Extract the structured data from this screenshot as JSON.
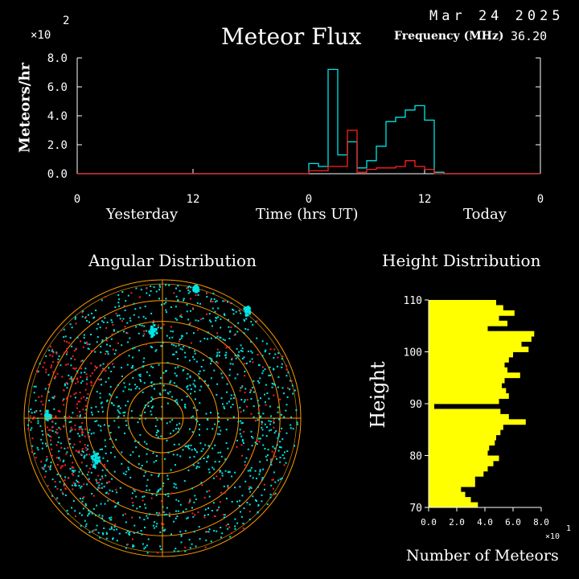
{
  "header": {
    "date": "Mar 24 2025",
    "title": "Meteor Flux",
    "frequency_label": "Frequency (MHz)",
    "frequency_value": "36.20",
    "exponent_label": "×10",
    "exponent_power": "2"
  },
  "flux_chart": {
    "ylabel": "Meteors/hr",
    "xlabel": "Time (hrs UT)",
    "yesterday_label": "Yesterday",
    "today_label": "Today",
    "colors": {
      "axis": "#ffffff",
      "cyan": "#00e5e5",
      "red": "#ff2020"
    }
  },
  "angular": {
    "title": "Angular Distribution",
    "colors": {
      "rings": "#ff9900",
      "cyan": "#00e5e5",
      "red": "#ff2020"
    }
  },
  "height": {
    "title": "Height Distribution",
    "ylabel": "Height",
    "xlabel": "Number of Meteors",
    "exponent_label": "×10",
    "exponent_power": "1",
    "bar_color": "#ffff00"
  },
  "chart_data": [
    {
      "type": "line",
      "title": "Meteor Flux",
      "ylabel": "Meteors/hr",
      "xlabel": "Time (hrs UT)",
      "ylim": [
        0,
        8.0
      ],
      "yticks": [
        "0.0",
        "2.0",
        "4.0",
        "6.0",
        "8.0"
      ],
      "xticks": [
        "0",
        "12",
        "0",
        "12",
        "0"
      ],
      "x_hours": [
        0,
        1,
        2,
        3,
        4,
        5,
        6,
        7,
        8,
        9,
        10,
        11,
        12,
        13,
        14,
        15,
        16,
        17,
        18,
        19,
        20,
        21,
        22,
        23
      ],
      "series": [
        {
          "color": "cyan",
          "values": [
            0.7,
            0.5,
            7.2,
            1.3,
            2.2,
            0.4,
            0.9,
            1.9,
            3.6,
            3.9,
            4.4,
            4.7,
            3.7,
            0.1,
            0,
            0,
            0,
            0,
            0,
            0,
            0,
            0,
            0,
            0
          ]
        },
        {
          "color": "red",
          "values": [
            0.2,
            0.2,
            0.5,
            0.5,
            3.0,
            0.1,
            0.3,
            0.4,
            0.4,
            0.5,
            0.9,
            0.5,
            0.3,
            0,
            0,
            0,
            0,
            0,
            0,
            0,
            0,
            0,
            0,
            0
          ]
        }
      ]
    },
    {
      "type": "scatter",
      "title": "Angular Distribution"
    },
    {
      "type": "bar",
      "title": "Height Distribution",
      "ylabel": "Height",
      "xlabel": "Number of Meteors",
      "xlim": [
        0,
        8.0
      ],
      "xticks": [
        "0.0",
        "2.0",
        "4.0",
        "6.0",
        "8.0"
      ],
      "ylim": [
        70,
        110
      ],
      "yticks": [
        "70",
        "80",
        "90",
        "100",
        "110"
      ],
      "heights": [
        110,
        109,
        108,
        107,
        106,
        105,
        104,
        103,
        102,
        101,
        100,
        99,
        98,
        97,
        96,
        95,
        94,
        93,
        92,
        91,
        90,
        89,
        88,
        87,
        86,
        85,
        84,
        83,
        82,
        81,
        80,
        79,
        78,
        77,
        76,
        75,
        74,
        73,
        72,
        71
      ],
      "values": [
        4.8,
        5.3,
        6.1,
        5.0,
        5.6,
        4.2,
        7.5,
        7.3,
        6.6,
        7.1,
        6.0,
        5.7,
        5.4,
        5.6,
        6.5,
        5.4,
        5.2,
        5.5,
        5.7,
        5.0,
        0.4,
        5.1,
        5.7,
        6.9,
        5.3,
        5.1,
        4.8,
        4.7,
        4.3,
        4.2,
        5.0,
        4.6,
        4.2,
        3.9,
        3.3,
        3.3,
        2.3,
        2.6,
        3.0,
        3.5
      ]
    }
  ]
}
